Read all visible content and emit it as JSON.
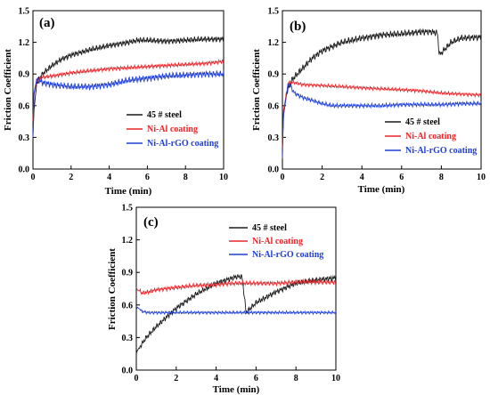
{
  "figure": {
    "panels": [
      "(a)",
      "(b)",
      "(c)"
    ]
  },
  "chart_data": [
    {
      "type": "line",
      "panel": "(a)",
      "xlabel": "Time (min)",
      "ylabel": "Friction Coefficient",
      "xlim": [
        0,
        10
      ],
      "ylim": [
        0,
        1.5
      ],
      "xticks": [
        0,
        2,
        4,
        6,
        8,
        10
      ],
      "yticks": [
        0.0,
        0.3,
        0.6,
        0.9,
        1.2,
        1.5
      ],
      "ytick_labels": [
        "0.0",
        "0.3",
        "0.6",
        "0.9",
        "1.2",
        "1.5"
      ],
      "legend_position": "center-right",
      "series": [
        {
          "name": "45 # steel",
          "color": "#1a1a1a",
          "x": [
            0,
            0.05,
            0.2,
            0.5,
            1,
            1.5,
            2,
            3,
            4,
            5,
            5.5,
            6,
            7,
            8,
            9,
            10
          ],
          "y": [
            0.3,
            0.55,
            0.82,
            0.9,
            0.98,
            1.04,
            1.08,
            1.13,
            1.17,
            1.2,
            1.22,
            1.22,
            1.21,
            1.22,
            1.23,
            1.23
          ],
          "noise": 0.03
        },
        {
          "name": "Ni-Al coating",
          "color": "#e8262a",
          "x": [
            0,
            0.05,
            0.2,
            0.5,
            1,
            2,
            3,
            4,
            5,
            6,
            7,
            8,
            9,
            10
          ],
          "y": [
            0.45,
            0.7,
            0.84,
            0.87,
            0.88,
            0.91,
            0.93,
            0.95,
            0.96,
            0.97,
            0.98,
            0.99,
            1.0,
            1.02
          ],
          "noise": 0.02
        },
        {
          "name": "Ni-Al-rGO coating",
          "color": "#1f3fd6",
          "x": [
            0,
            0.05,
            0.2,
            0.5,
            1,
            2,
            3,
            4,
            5,
            6,
            7,
            8,
            9,
            10
          ],
          "y": [
            0.3,
            0.72,
            0.85,
            0.82,
            0.8,
            0.78,
            0.78,
            0.8,
            0.84,
            0.86,
            0.88,
            0.89,
            0.9,
            0.9
          ],
          "noise": 0.035
        }
      ]
    },
    {
      "type": "line",
      "panel": "(b)",
      "xlabel": "Time (min)",
      "ylabel": "Friction Coefficient",
      "xlim": [
        0,
        10
      ],
      "ylim": [
        0,
        1.5
      ],
      "xticks": [
        0,
        2,
        4,
        6,
        8,
        10
      ],
      "yticks": [
        0.0,
        0.3,
        0.6,
        0.9,
        1.2,
        1.5
      ],
      "ytick_labels": [
        "0.0",
        "0.3",
        "0.6",
        "0.9",
        "1.2",
        "1.5"
      ],
      "legend_position": "bottom-right",
      "series": [
        {
          "name": "45 # steel",
          "color": "#1a1a1a",
          "x": [
            0,
            0.05,
            0.2,
            0.5,
            1,
            1.5,
            2,
            3,
            4,
            5,
            6,
            7,
            7.5,
            7.8,
            7.9,
            8.5,
            9,
            10
          ],
          "y": [
            0.2,
            0.5,
            0.72,
            0.85,
            0.95,
            1.05,
            1.12,
            1.2,
            1.24,
            1.27,
            1.28,
            1.3,
            1.3,
            1.29,
            1.08,
            1.2,
            1.24,
            1.25
          ],
          "noise": 0.035
        },
        {
          "name": "Ni-Al coating",
          "color": "#e8262a",
          "x": [
            0,
            0.05,
            0.3,
            0.6,
            1,
            2,
            3,
            4,
            5,
            6,
            7,
            8,
            9,
            10
          ],
          "y": [
            0.2,
            0.55,
            0.82,
            0.82,
            0.8,
            0.79,
            0.78,
            0.77,
            0.76,
            0.75,
            0.74,
            0.72,
            0.71,
            0.7
          ],
          "noise": 0.018
        },
        {
          "name": "Ni-Al-rGO coating",
          "color": "#1f3fd6",
          "x": [
            0,
            0.05,
            0.3,
            0.6,
            1,
            2,
            2.5,
            3,
            4,
            5,
            6,
            7,
            8,
            9,
            10
          ],
          "y": [
            0.1,
            0.5,
            0.82,
            0.72,
            0.68,
            0.62,
            0.6,
            0.6,
            0.6,
            0.6,
            0.61,
            0.61,
            0.61,
            0.62,
            0.62
          ],
          "noise": 0.022
        }
      ]
    },
    {
      "type": "line",
      "panel": "(c)",
      "xlabel": "Time (min)",
      "ylabel": "Friction Coefficient",
      "xlim": [
        0,
        10
      ],
      "ylim": [
        0,
        1.5
      ],
      "xticks": [
        0,
        2,
        4,
        6,
        8,
        10
      ],
      "yticks": [
        0.0,
        0.3,
        0.6,
        0.9,
        1.2,
        1.5
      ],
      "ytick_labels": [
        "0.0",
        "0.3",
        "0.6",
        "0.9",
        "1.2",
        "1.5"
      ],
      "legend_position": "top-right",
      "series": [
        {
          "name": "45 # steel",
          "color": "#1a1a1a",
          "x": [
            0,
            0.05,
            0.5,
            1,
            2,
            3,
            4,
            5,
            5.3,
            5.4,
            5.5,
            6,
            7,
            8,
            9,
            10
          ],
          "y": [
            0.15,
            0.18,
            0.3,
            0.4,
            0.57,
            0.7,
            0.8,
            0.86,
            0.86,
            0.7,
            0.53,
            0.62,
            0.72,
            0.8,
            0.83,
            0.85
          ],
          "noise": 0.028
        },
        {
          "name": "Ni-Al coating",
          "color": "#e8262a",
          "x": [
            0,
            0.05,
            0.3,
            0.6,
            1,
            2,
            3,
            4,
            5,
            6,
            7,
            8,
            9,
            10
          ],
          "y": [
            0.76,
            0.74,
            0.71,
            0.72,
            0.74,
            0.76,
            0.78,
            0.79,
            0.8,
            0.8,
            0.8,
            0.81,
            0.81,
            0.81
          ],
          "noise": 0.022
        },
        {
          "name": "Ni-Al-rGO coating",
          "color": "#1f3fd6",
          "x": [
            0,
            0.05,
            0.3,
            0.6,
            1,
            2,
            3,
            4,
            5,
            6,
            7,
            8,
            9,
            10
          ],
          "y": [
            0.55,
            0.58,
            0.54,
            0.53,
            0.53,
            0.53,
            0.53,
            0.53,
            0.53,
            0.53,
            0.53,
            0.53,
            0.53,
            0.53
          ],
          "noise": 0.015
        }
      ]
    }
  ]
}
